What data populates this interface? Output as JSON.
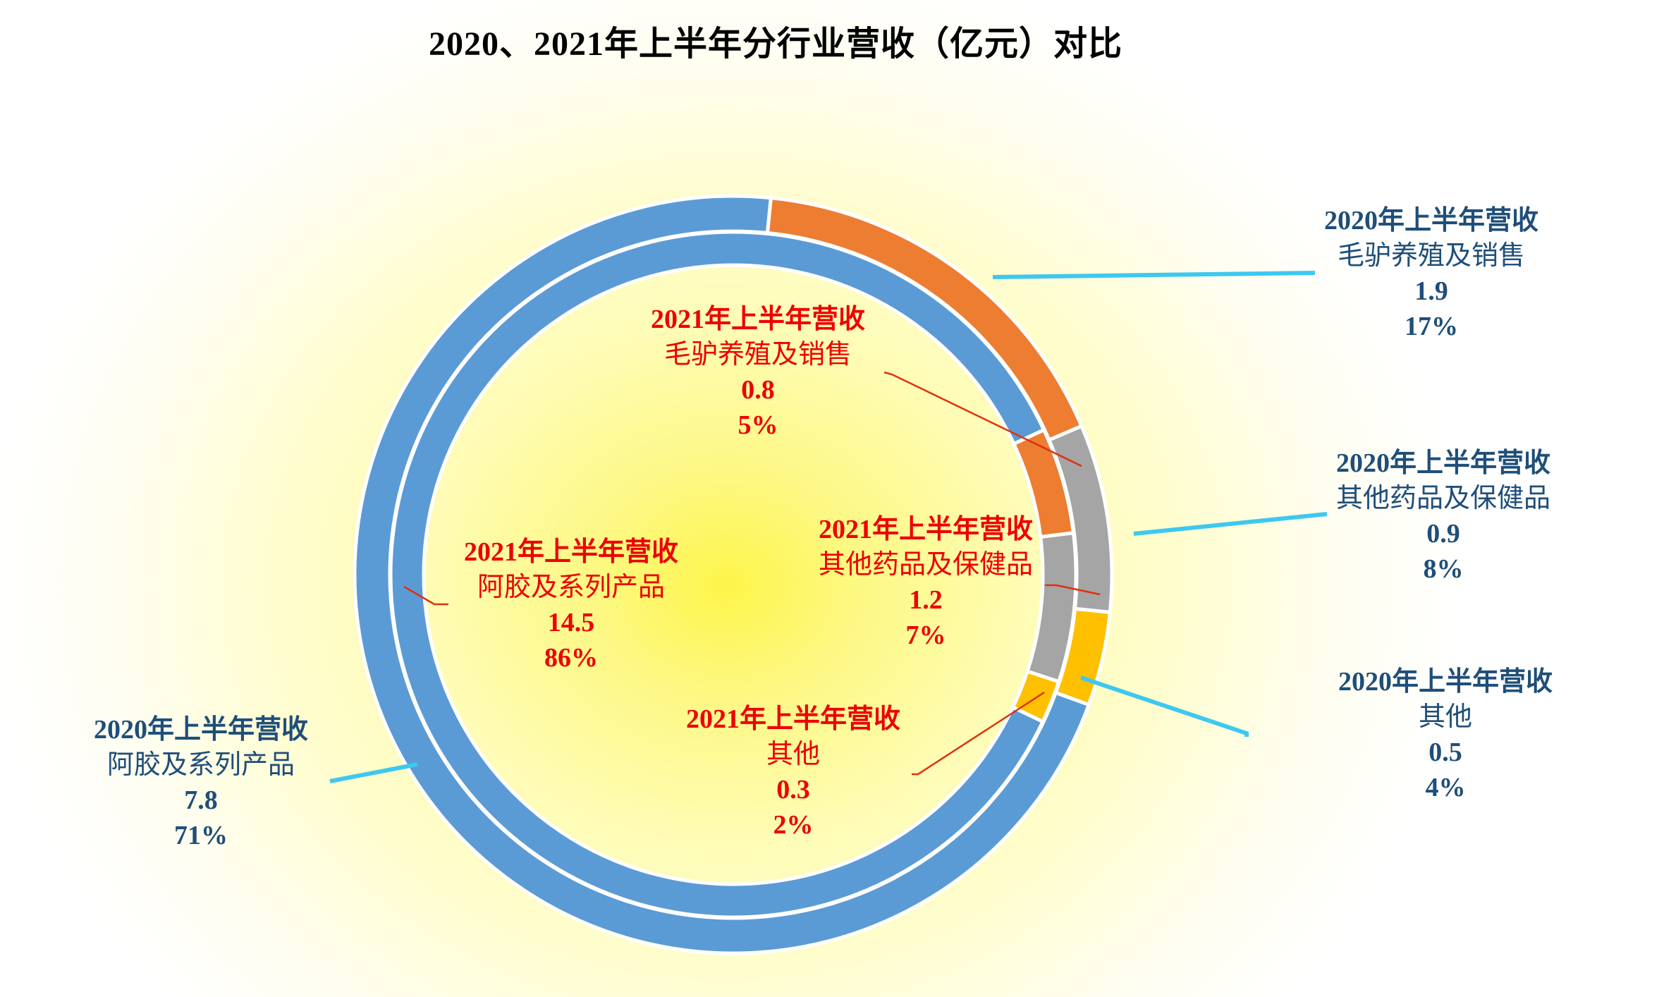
{
  "title": "2020、2021年上半年分行业营收（亿元）对比",
  "colors": {
    "blue": "#5b9bd5",
    "orange": "#ed7d31",
    "gray": "#a5a5a5",
    "yellow": "#ffc000",
    "outer_label_text": "#1f4e79",
    "inner_label_text": "#ee0000",
    "outer_leader_line": "#3ec8f0",
    "inner_leader_line": "#e03010"
  },
  "labels": {
    "outer": [
      {
        "series": "2020年上半年营收",
        "category": "阿胶及系列产品",
        "value": "7.8",
        "percent": "71%"
      },
      {
        "series": "2020年上半年营收",
        "category": "毛驴养殖及销售",
        "value": "1.9",
        "percent": "17%"
      },
      {
        "series": "2020年上半年营收",
        "category": "其他药品及保健品",
        "value": "0.9",
        "percent": "8%"
      },
      {
        "series": "2020年上半年营收",
        "category": "其他",
        "value": "0.5",
        "percent": "4%"
      }
    ],
    "inner": [
      {
        "series": "2021年上半年营收",
        "category": "阿胶及系列产品",
        "value": "14.5",
        "percent": "86%"
      },
      {
        "series": "2021年上半年营收",
        "category": "毛驴养殖及销售",
        "value": "0.8",
        "percent": "5%"
      },
      {
        "series": "2021年上半年营收",
        "category": "其他药品及保健品",
        "value": "1.2",
        "percent": "7%"
      },
      {
        "series": "2021年上半年营收",
        "category": "其他",
        "value": "0.3",
        "percent": "2%"
      }
    ]
  },
  "chart_data": {
    "type": "pie",
    "subtype": "doughnut (two concentric rings)",
    "title": "2020、2021年上半年分行业营收（亿元）对比",
    "categories": [
      "阿胶及系列产品",
      "毛驴养殖及销售",
      "其他药品及保健品",
      "其他"
    ],
    "series": [
      {
        "name": "2020年上半年营收",
        "ring": "outer",
        "values": [
          7.8,
          1.9,
          0.9,
          0.5
        ],
        "percents": [
          71,
          17,
          8,
          4
        ]
      },
      {
        "name": "2021年上半年营收",
        "ring": "inner",
        "values": [
          14.5,
          0.8,
          1.2,
          0.3
        ],
        "percents": [
          86,
          5,
          7,
          2
        ]
      }
    ],
    "unit": "亿元",
    "legend": "none (data labels with leader lines)"
  }
}
